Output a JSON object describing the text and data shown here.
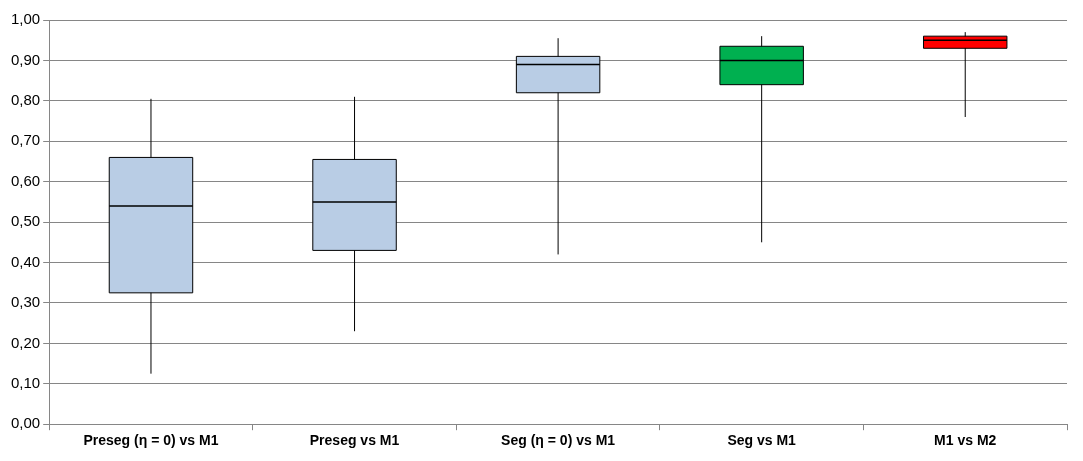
{
  "chart_data": {
    "type": "box",
    "categories": [
      "Preseg (η = 0) vs M1",
      "Preseg vs M1",
      "Seg (η = 0) vs M1",
      "Seg vs M1",
      "M1 vs M2"
    ],
    "colors": [
      "#b9cde5",
      "#b9cde5",
      "#b9cde5",
      "#00b050",
      "#ff0000"
    ],
    "boxes": [
      {
        "low": 0.125,
        "q1": 0.325,
        "median": 0.54,
        "q3": 0.66,
        "high": 0.805
      },
      {
        "low": 0.23,
        "q1": 0.43,
        "median": 0.55,
        "q3": 0.655,
        "high": 0.81
      },
      {
        "low": 0.42,
        "q1": 0.82,
        "median": 0.89,
        "q3": 0.91,
        "high": 0.955
      },
      {
        "low": 0.45,
        "q1": 0.84,
        "median": 0.9,
        "q3": 0.935,
        "high": 0.96
      },
      {
        "low": 0.76,
        "q1": 0.93,
        "median": 0.95,
        "q3": 0.96,
        "high": 0.97
      }
    ],
    "ylim": [
      0,
      1
    ],
    "yticks": [
      {
        "value": 0,
        "label": "0,00"
      },
      {
        "value": 0.1,
        "label": "0,10"
      },
      {
        "value": 0.2,
        "label": "0,20"
      },
      {
        "value": 0.3,
        "label": "0,30"
      },
      {
        "value": 0.4,
        "label": "0,40"
      },
      {
        "value": 0.5,
        "label": "0,50"
      },
      {
        "value": 0.6,
        "label": "0,60"
      },
      {
        "value": 0.7,
        "label": "0,70"
      },
      {
        "value": 0.8,
        "label": "0,80"
      },
      {
        "value": 0.9,
        "label": "0,90"
      },
      {
        "value": 1,
        "label": "1,00"
      }
    ],
    "grid": "y",
    "legend": false
  }
}
